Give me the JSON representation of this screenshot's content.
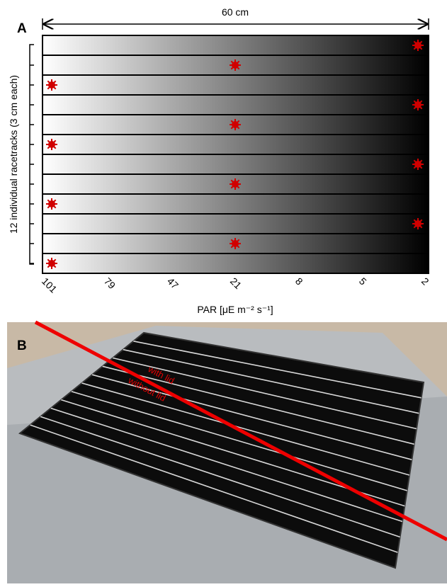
{
  "panel_a": {
    "label": "A",
    "width_label": "60 cm",
    "tracks_label": "12 individual racetracks (3 cm each)",
    "par_ticks": [
      "101",
      "79",
      "47",
      "21",
      "8",
      "5",
      "2"
    ],
    "x_axis_label": "PAR [μE m⁻² s⁻¹]"
  },
  "panel_b": {
    "label": "B",
    "with_lid": "with lid",
    "without_lid": "without lid"
  }
}
